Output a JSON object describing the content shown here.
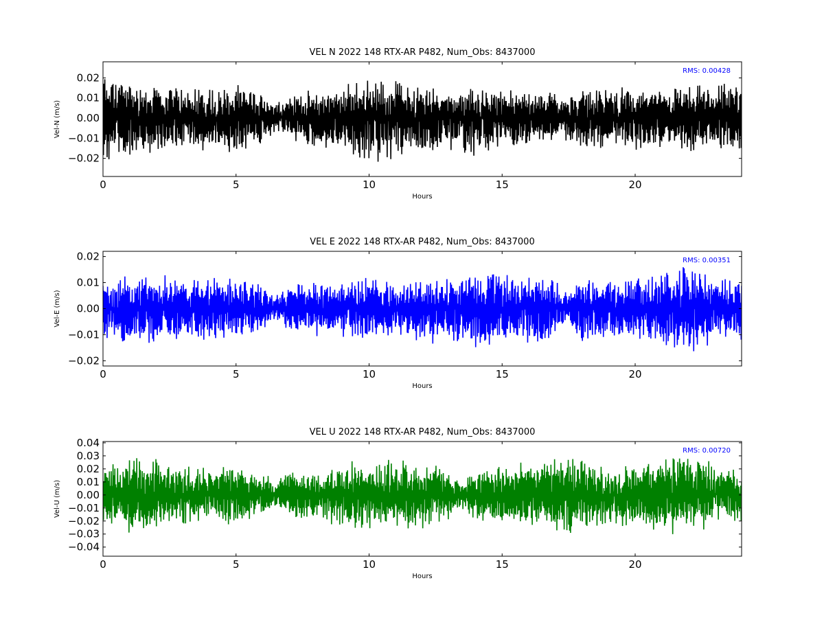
{
  "chart_data": [
    {
      "type": "line",
      "title": "VEL N 2022 148 RTX-AR  P482, Num_Obs: 8437000",
      "xlabel": "Hours",
      "ylabel": "Vel-N (m/s)",
      "xlim": [
        0,
        24
      ],
      "ylim": [
        -0.029,
        0.028
      ],
      "xticks": [
        0,
        5,
        10,
        15,
        20
      ],
      "yticks": [
        -0.02,
        -0.01,
        0.0,
        0.01,
        0.02
      ],
      "ytick_labels": [
        "−0.02",
        "−0.01",
        "0.00",
        "0.01",
        "0.02"
      ],
      "grid": false,
      "color": "#000000",
      "annotation": "RMS:  0.00428",
      "annotation_color": "#0000ff",
      "series": [
        {
          "x": [
            0,
            0.5,
            1,
            2,
            3,
            4,
            5,
            6,
            6.5,
            7,
            8,
            9,
            9.5,
            10,
            10.5,
            11,
            12,
            13,
            14,
            15,
            16,
            17,
            17.5,
            18,
            19,
            20,
            21,
            22,
            23,
            24
          ],
          "y_max": [
            0.025,
            0.023,
            0.02,
            0.017,
            0.017,
            0.017,
            0.017,
            0.014,
            0.009,
            0.012,
            0.015,
            0.016,
            0.02,
            0.022,
            0.02,
            0.02,
            0.017,
            0.016,
            0.016,
            0.015,
            0.014,
            0.014,
            0.012,
            0.015,
            0.016,
            0.016,
            0.016,
            0.017,
            0.018,
            0.018
          ],
          "y_min": [
            -0.022,
            -0.024,
            -0.02,
            -0.018,
            -0.017,
            -0.017,
            -0.018,
            -0.014,
            -0.009,
            -0.012,
            -0.016,
            -0.018,
            -0.022,
            -0.025,
            -0.024,
            -0.022,
            -0.019,
            -0.017,
            -0.02,
            -0.016,
            -0.014,
            -0.014,
            -0.012,
            -0.016,
            -0.016,
            -0.016,
            -0.016,
            -0.017,
            -0.017,
            -0.018
          ]
        }
      ]
    },
    {
      "type": "line",
      "title": "VEL E 2022 148 RTX-AR  P482, Num_Obs: 8437000",
      "xlabel": "Hours",
      "ylabel": "Vel-E (m/s)",
      "xlim": [
        0,
        24
      ],
      "ylim": [
        -0.022,
        0.022
      ],
      "xticks": [
        0,
        5,
        10,
        15,
        20
      ],
      "yticks": [
        -0.02,
        -0.01,
        0.0,
        0.01,
        0.02
      ],
      "ytick_labels": [
        "−0.02",
        "−0.01",
        "0.00",
        "0.01",
        "0.02"
      ],
      "grid": false,
      "color": "#0000ff",
      "annotation": "RMS:  0.00351",
      "annotation_color": "#0000ff",
      "series": [
        {
          "x": [
            0,
            1,
            2,
            3,
            4,
            5,
            6,
            6.5,
            7,
            8,
            9,
            10,
            11,
            12,
            13,
            14,
            14.5,
            15,
            16,
            16.5,
            17,
            17.5,
            18,
            19,
            20,
            21,
            21.5,
            22,
            23,
            24
          ],
          "y_max": [
            0.013,
            0.014,
            0.014,
            0.013,
            0.013,
            0.012,
            0.01,
            0.005,
            0.01,
            0.011,
            0.012,
            0.013,
            0.011,
            0.013,
            0.014,
            0.016,
            0.017,
            0.014,
            0.013,
            0.014,
            0.011,
            0.006,
            0.014,
            0.013,
            0.013,
            0.014,
            0.018,
            0.019,
            0.013,
            0.013
          ],
          "y_min": [
            -0.014,
            -0.015,
            -0.014,
            -0.013,
            -0.013,
            -0.012,
            -0.01,
            -0.005,
            -0.01,
            -0.011,
            -0.012,
            -0.013,
            -0.011,
            -0.013,
            -0.015,
            -0.016,
            -0.017,
            -0.014,
            -0.014,
            -0.016,
            -0.012,
            -0.006,
            -0.014,
            -0.013,
            -0.013,
            -0.015,
            -0.019,
            -0.02,
            -0.014,
            -0.013
          ]
        }
      ]
    },
    {
      "type": "line",
      "title": "VEL U 2022 148 RTX-AR  P482, Num_Obs: 8437000",
      "xlabel": "Hours",
      "ylabel": "Vel-U (m/s)",
      "xlim": [
        0,
        24
      ],
      "ylim": [
        -0.047,
        0.041
      ],
      "xticks": [
        0,
        5,
        10,
        15,
        20
      ],
      "yticks": [
        -0.04,
        -0.03,
        -0.02,
        -0.01,
        0.0,
        0.01,
        0.02,
        0.03,
        0.04
      ],
      "ytick_labels": [
        "−0.04",
        "−0.03",
        "−0.02",
        "−0.01",
        "0.00",
        "0.01",
        "0.02",
        "0.03",
        "0.04"
      ],
      "grid": false,
      "color": "#008000",
      "annotation": "RMS:  0.00720",
      "annotation_color": "#0000ff",
      "series": [
        {
          "x": [
            0,
            1,
            2,
            3,
            4,
            5,
            6,
            6.5,
            7,
            8,
            9,
            10,
            11,
            12,
            13,
            13.5,
            14,
            15,
            16,
            17,
            17.5,
            18,
            19,
            20,
            21,
            21.5,
            22,
            23,
            24
          ],
          "y_max": [
            0.025,
            0.03,
            0.028,
            0.025,
            0.022,
            0.025,
            0.02,
            0.01,
            0.02,
            0.022,
            0.025,
            0.03,
            0.03,
            0.027,
            0.022,
            0.012,
            0.022,
            0.025,
            0.025,
            0.03,
            0.032,
            0.028,
            0.025,
            0.025,
            0.03,
            0.035,
            0.03,
            0.025,
            0.022
          ],
          "y_min": [
            -0.025,
            -0.032,
            -0.028,
            -0.025,
            -0.022,
            -0.025,
            -0.02,
            -0.01,
            -0.02,
            -0.022,
            -0.028,
            -0.03,
            -0.03,
            -0.027,
            -0.022,
            -0.012,
            -0.022,
            -0.025,
            -0.025,
            -0.03,
            -0.032,
            -0.028,
            -0.025,
            -0.025,
            -0.03,
            -0.035,
            -0.03,
            -0.025,
            -0.022
          ]
        }
      ]
    }
  ]
}
